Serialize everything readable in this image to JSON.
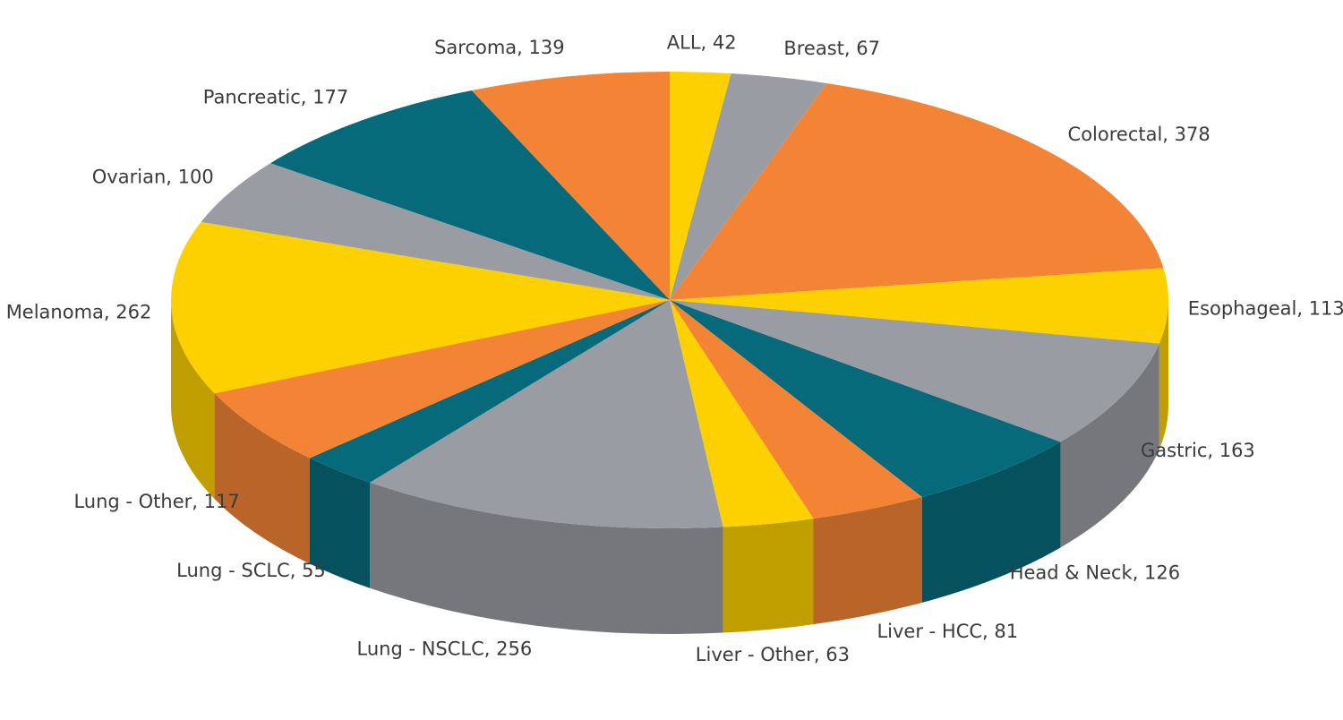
{
  "chart_data": {
    "type": "pie3d",
    "categories": [
      "ALL",
      "Breast",
      "Colorectal",
      "Esophageal",
      "Gastric",
      "Head & Neck",
      "Liver - HCC",
      "Liver - Other",
      "Lung - NSCLC",
      "Lung - SCLC",
      "Lung - Other",
      "Melanoma",
      "Ovarian",
      "Pancreatic",
      "Sarcoma"
    ],
    "values": [
      42,
      67,
      378,
      113,
      163,
      126,
      81,
      63,
      256,
      55,
      117,
      262,
      100,
      177,
      139
    ],
    "value_labels": [
      "ALL, 42",
      "Breast, 67",
      "Colorectal, 378",
      "Esophageal, 113",
      "Gastric, 163",
      "Head & Neck, 126",
      "Liver - HCC, 81",
      "Liver - Other, 63",
      "Lung - NSCLC, 256",
      "Lung - SCLC, 55",
      "Lung - Other, 117",
      "Melanoma, 262",
      "Ovarian, 100",
      "Pancreatic, 177",
      "Sarcoma, 139"
    ],
    "colors": [
      "#fdd000",
      "#9a9ca3",
      "#f38435",
      "#fdd000",
      "#9a9ca3",
      "#066a7a",
      "#f38435",
      "#fdd000",
      "#9a9ca3",
      "#066a7a",
      "#f38435",
      "#fdd000",
      "#9a9ca3",
      "#066a7a",
      "#f38435"
    ]
  }
}
